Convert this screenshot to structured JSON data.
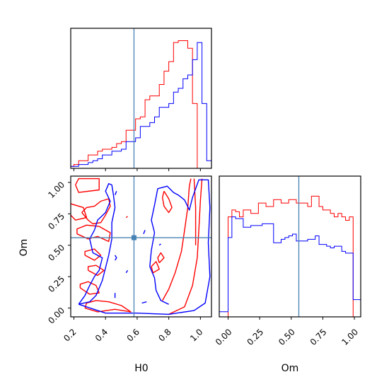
{
  "chart_data": {
    "type": "corner",
    "parameters": [
      "H0",
      "Om"
    ],
    "truth": {
      "H0": 0.58,
      "Om": 0.56
    },
    "colors": {
      "series_red": "#ff0000",
      "series_blue": "#0000ff",
      "truth": "#4682b4"
    },
    "axes": {
      "H0": {
        "label": "H0",
        "range": [
          0.18,
          1.07
        ],
        "ticks": [
          "0.2",
          "0.4",
          "0.6",
          "0.8",
          "1.0"
        ],
        "tick_values": [
          0.2,
          0.4,
          0.6,
          0.8,
          1.0
        ]
      },
      "Om": {
        "label": "Om",
        "range": [
          -0.07,
          1.05
        ],
        "ticks": [
          "0.00",
          "0.25",
          "0.50",
          "0.75",
          "1.00"
        ],
        "tick_values": [
          0.0,
          0.25,
          0.5,
          0.75,
          1.0
        ]
      }
    },
    "hist_H0": {
      "bin_edges": [
        0.18,
        0.2,
        0.23,
        0.26,
        0.29,
        0.32,
        0.35,
        0.38,
        0.41,
        0.44,
        0.47,
        0.5,
        0.53,
        0.56,
        0.59,
        0.62,
        0.65,
        0.68,
        0.71,
        0.74,
        0.77,
        0.8,
        0.83,
        0.86,
        0.89,
        0.92,
        0.95,
        0.98,
        1.01,
        1.04,
        1.07
      ],
      "series": [
        {
          "color": "red",
          "counts": [
            0.5,
            1.0,
            2.0,
            2.0,
            3.5,
            3.5,
            4.5,
            5.0,
            5.0,
            5.5,
            6.5,
            7.0,
            10.0,
            10.0,
            13.0,
            13.5,
            18.0,
            19.0,
            19.0,
            22.0,
            25.5,
            28.0,
            33.0,
            33.5,
            33.5,
            31.5,
            17.0,
            0.0,
            0.0,
            0.0
          ]
        },
        {
          "color": "blue",
          "counts": [
            0.5,
            0.5,
            1.0,
            1.0,
            1.5,
            2.0,
            2.5,
            3.5,
            3.5,
            4.5,
            4.5,
            5.0,
            7.0,
            7.0,
            8.0,
            11.0,
            11.0,
            12.0,
            13.5,
            16.0,
            16.0,
            17.0,
            20.0,
            21.0,
            23.5,
            24.5,
            28.5,
            33.0,
            17.0,
            2.0
          ]
        }
      ]
    },
    "hist_Om": {
      "bin_edges": [
        -0.07,
        0.0,
        0.03,
        0.06,
        0.09,
        0.12,
        0.15,
        0.18,
        0.21,
        0.24,
        0.27,
        0.3,
        0.33,
        0.36,
        0.39,
        0.42,
        0.45,
        0.48,
        0.51,
        0.54,
        0.57,
        0.6,
        0.63,
        0.66,
        0.69,
        0.72,
        0.75,
        0.78,
        0.81,
        0.84,
        0.87,
        0.9,
        0.93,
        0.96,
        0.99,
        1.02,
        1.05
      ],
      "series": [
        {
          "color": "red",
          "counts": [
            0,
            29,
            31,
            30.5,
            29,
            31,
            31,
            30,
            30,
            33,
            33,
            32,
            32,
            34,
            34,
            33,
            33,
            34,
            34,
            33,
            33,
            33,
            32,
            35,
            35,
            32,
            31,
            31,
            30,
            29,
            30,
            29,
            28,
            29,
            0,
            0
          ]
        },
        {
          "color": "blue",
          "counts": [
            1.5,
            23,
            29,
            28.5,
            28.5,
            26,
            26,
            26.5,
            26.5,
            26.5,
            27,
            27,
            27,
            21.5,
            21.5,
            22.5,
            23,
            23.5,
            24,
            22,
            22,
            22,
            22.5,
            22.5,
            23.5,
            21,
            21,
            20.5,
            20,
            20.5,
            20.5,
            19,
            18.5,
            18.5,
            5,
            5
          ]
        }
      ]
    },
    "contour_paths": [
      {
        "color": "red",
        "points": [
          [
            0.21,
            0.98
          ],
          [
            0.23,
            1.03
          ],
          [
            0.36,
            1.03
          ],
          [
            0.36,
            0.94
          ],
          [
            0.23,
            0.92
          ],
          [
            0.21,
            0.98
          ]
        ]
      },
      {
        "color": "red",
        "points": [
          [
            0.18,
            0.83
          ],
          [
            0.26,
            0.8
          ],
          [
            0.28,
            0.72
          ],
          [
            0.21,
            0.7
          ],
          [
            0.18,
            0.74
          ]
        ]
      },
      {
        "color": "red",
        "points": [
          [
            0.25,
            0.76
          ],
          [
            0.29,
            0.7
          ],
          [
            0.32,
            0.67
          ],
          [
            0.37,
            0.68
          ],
          [
            0.4,
            0.74
          ],
          [
            0.43,
            0.81
          ],
          [
            0.42,
            0.87
          ],
          [
            0.37,
            0.85
          ],
          [
            0.33,
            0.81
          ],
          [
            0.28,
            0.8
          ],
          [
            0.25,
            0.76
          ]
        ]
      },
      {
        "color": "red",
        "points": [
          [
            0.22,
            0.59
          ],
          [
            0.29,
            0.55
          ],
          [
            0.35,
            0.57
          ],
          [
            0.42,
            0.53
          ],
          [
            0.43,
            0.6
          ],
          [
            0.36,
            0.65
          ],
          [
            0.28,
            0.66
          ],
          [
            0.22,
            0.63
          ],
          [
            0.22,
            0.59
          ]
        ]
      },
      {
        "color": "red",
        "points": [
          [
            0.27,
            0.42
          ],
          [
            0.33,
            0.38
          ],
          [
            0.37,
            0.42
          ],
          [
            0.33,
            0.47
          ],
          [
            0.27,
            0.45
          ],
          [
            0.27,
            0.42
          ]
        ]
      },
      {
        "color": "red",
        "points": [
          [
            0.29,
            0.3
          ],
          [
            0.35,
            0.26
          ],
          [
            0.39,
            0.3
          ],
          [
            0.34,
            0.34
          ],
          [
            0.29,
            0.33
          ],
          [
            0.29,
            0.3
          ]
        ]
      },
      {
        "color": "red",
        "points": [
          [
            0.24,
            0.16
          ],
          [
            0.3,
            0.11
          ],
          [
            0.36,
            0.12
          ],
          [
            0.34,
            0.18
          ],
          [
            0.29,
            0.21
          ],
          [
            0.24,
            0.19
          ],
          [
            0.24,
            0.16
          ]
        ]
      },
      {
        "color": "red",
        "points": [
          [
            0.27,
            0.0
          ],
          [
            0.35,
            -0.03
          ],
          [
            0.46,
            -0.01
          ],
          [
            0.56,
            -0.03
          ],
          [
            0.5,
            0.02
          ],
          [
            0.42,
            0.05
          ],
          [
            0.34,
            0.06
          ],
          [
            0.28,
            0.04
          ],
          [
            0.27,
            0.0
          ]
        ]
      },
      {
        "color": "red",
        "points": [
          [
            0.77,
            0.93
          ],
          [
            0.8,
            0.87
          ],
          [
            0.82,
            0.8
          ],
          [
            0.8,
            0.76
          ],
          [
            0.77,
            0.81
          ],
          [
            0.76,
            0.88
          ],
          [
            0.77,
            0.93
          ]
        ]
      },
      {
        "color": "red",
        "points": [
          [
            0.7,
            0.28
          ],
          [
            0.74,
            0.31
          ],
          [
            0.72,
            0.37
          ],
          [
            0.69,
            0.33
          ],
          [
            0.7,
            0.28
          ]
        ]
      },
      {
        "color": "red",
        "points": [
          [
            0.74,
            0.36
          ],
          [
            0.77,
            0.4
          ],
          [
            0.75,
            0.44
          ],
          [
            0.73,
            0.4
          ],
          [
            0.74,
            0.36
          ]
        ]
      },
      {
        "color": "red",
        "points": [
          [
            0.76,
            0.06
          ],
          [
            0.8,
            0.15
          ],
          [
            0.84,
            0.28
          ],
          [
            0.88,
            0.45
          ],
          [
            0.9,
            0.62
          ],
          [
            0.92,
            0.8
          ],
          [
            0.93,
            0.97
          ],
          [
            0.94,
            1.03
          ]
        ]
      },
      {
        "color": "red",
        "points": [
          [
            0.8,
            -0.05
          ],
          [
            0.9,
            0.01
          ],
          [
            0.95,
            0.18
          ],
          [
            0.98,
            0.4
          ],
          [
            0.99,
            0.62
          ],
          [
            1.0,
            0.85
          ],
          [
            1.01,
            1.03
          ]
        ]
      },
      {
        "color": "red",
        "points": [
          [
            0.96,
            1.03
          ],
          [
            0.97,
            0.8
          ],
          [
            0.97,
            0.5
          ]
        ]
      },
      {
        "color": "red",
        "points": [
          [
            0.53,
            0.72
          ],
          [
            0.54,
            0.73
          ]
        ]
      },
      {
        "color": "blue",
        "points": [
          [
            0.23,
            0.03
          ],
          [
            0.4,
            -0.04
          ],
          [
            0.6,
            -0.04
          ],
          [
            0.8,
            -0.05
          ],
          [
            0.96,
            -0.02
          ],
          [
            1.03,
            0.04
          ],
          [
            1.06,
            0.25
          ],
          [
            1.05,
            0.52
          ],
          [
            1.06,
            0.8
          ],
          [
            1.05,
            1.02
          ],
          [
            0.99,
            1.02
          ],
          [
            0.95,
            0.88
          ],
          [
            0.93,
            0.78
          ],
          [
            0.9,
            0.86
          ],
          [
            0.86,
            0.9
          ],
          [
            0.83,
            0.92
          ],
          [
            0.79,
            0.97
          ],
          [
            0.73,
            0.95
          ],
          [
            0.71,
            0.82
          ],
          [
            0.69,
            0.7
          ],
          [
            0.71,
            0.6
          ],
          [
            0.69,
            0.46
          ],
          [
            0.68,
            0.33
          ],
          [
            0.71,
            0.24
          ],
          [
            0.72,
            0.14
          ],
          [
            0.75,
            0.06
          ],
          [
            0.8,
            0.03
          ]
        ]
      },
      {
        "color": "blue",
        "points": [
          [
            0.23,
            0.03
          ],
          [
            0.27,
            0.1
          ],
          [
            0.3,
            0.18
          ],
          [
            0.33,
            0.25
          ],
          [
            0.36,
            0.3
          ],
          [
            0.38,
            0.4
          ],
          [
            0.32,
            0.44
          ],
          [
            0.3,
            0.55
          ],
          [
            0.33,
            0.62
          ],
          [
            0.35,
            0.7
          ],
          [
            0.4,
            0.76
          ],
          [
            0.43,
            0.85
          ],
          [
            0.4,
            0.93
          ],
          [
            0.42,
            0.99
          ],
          [
            0.44,
            0.98
          ],
          [
            0.45,
            0.9
          ],
          [
            0.46,
            0.8
          ],
          [
            0.44,
            0.68
          ],
          [
            0.44,
            0.55
          ],
          [
            0.42,
            0.42
          ],
          [
            0.4,
            0.32
          ],
          [
            0.38,
            0.22
          ],
          [
            0.34,
            0.1
          ],
          [
            0.3,
            0.05
          ],
          [
            0.23,
            0.03
          ]
        ]
      },
      {
        "color": "blue",
        "points": [
          [
            0.46,
            0.38
          ],
          [
            0.47,
            0.4
          ],
          [
            0.46,
            0.42
          ]
        ]
      },
      {
        "color": "blue",
        "points": [
          [
            0.53,
            0.28
          ],
          [
            0.54,
            0.3
          ]
        ]
      },
      {
        "color": "blue",
        "points": [
          [
            0.63,
            0.04
          ],
          [
            0.66,
            0.05
          ]
        ]
      },
      {
        "color": "blue",
        "points": [
          [
            0.64,
            0.59
          ],
          [
            0.65,
            0.62
          ]
        ]
      },
      {
        "color": "blue",
        "points": [
          [
            0.74,
            0.5
          ],
          [
            0.75,
            0.51
          ]
        ]
      },
      {
        "color": "blue",
        "points": [
          [
            0.46,
            0.9
          ],
          [
            0.47,
            0.93
          ]
        ]
      },
      {
        "color": "blue",
        "points": [
          [
            0.46,
            0.08
          ],
          [
            0.46,
            0.12
          ]
        ]
      }
    ]
  }
}
